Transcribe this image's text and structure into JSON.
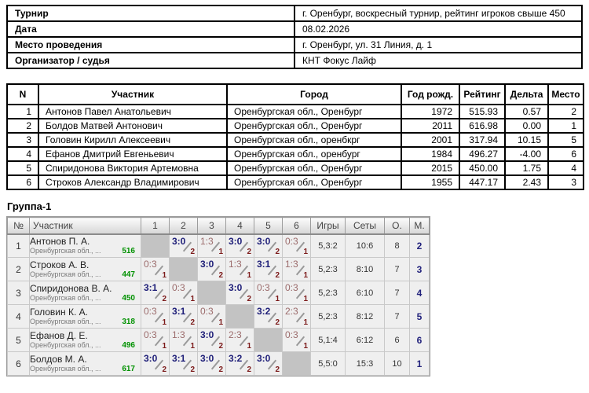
{
  "info_table": {
    "rows": [
      {
        "label": "Турнир",
        "value": "г. Оренбург, воскресный турнир, рейтинг игроков свыше 450"
      },
      {
        "label": "Дата",
        "value": "08.02.2026"
      },
      {
        "label": "Место проведения",
        "value": "г. Оренбург, ул. 31 Линия, д. 1"
      },
      {
        "label": "Организатор / судья",
        "value": "КНТ Фокус Лайф"
      }
    ]
  },
  "participants_table": {
    "headers": [
      "N",
      "Участник",
      "Город",
      "Год рожд.",
      "Рейтинг",
      "Дельта",
      "Место"
    ],
    "rows": [
      {
        "n": "1",
        "name": "Антонов Павел Анатольевич",
        "city": "Оренбургская обл., Оренбург",
        "year": "1972",
        "rating": "515.93",
        "delta": "0.57",
        "place": "2"
      },
      {
        "n": "2",
        "name": "Болдов Матвей Антонович",
        "city": "Оренбургская обл., Оренбург",
        "year": "2011",
        "rating": "616.98",
        "delta": "0.00",
        "place": "1"
      },
      {
        "n": "3",
        "name": "Головин Кирилл Алексеевич",
        "city": "Оренбургская обл., оренбкрг",
        "year": "2001",
        "rating": "317.94",
        "delta": "10.15",
        "place": "5"
      },
      {
        "n": "4",
        "name": "Ефанов Дмитрий Евгеньевич",
        "city": "Оренбургская обл., оренбург",
        "year": "1984",
        "rating": "496.27",
        "delta": "-4.00",
        "place": "6"
      },
      {
        "n": "5",
        "name": "Спиридонова Виктория Артемовна",
        "city": "Оренбургская обл., Оренбург",
        "year": "2015",
        "rating": "450.00",
        "delta": "1.75",
        "place": "4"
      },
      {
        "n": "6",
        "name": "Строков Александр Владимирович",
        "city": "Оренбургская обл., Оренбург",
        "year": "1955",
        "rating": "447.17",
        "delta": "2.43",
        "place": "3"
      }
    ]
  },
  "group": {
    "title": "Группа-1",
    "headers": [
      "№",
      "Участник",
      "1",
      "2",
      "3",
      "4",
      "5",
      "6",
      "Игры",
      "Сеты",
      "О.",
      "М."
    ],
    "rows": [
      {
        "n": "1",
        "name": "Антонов П. А.",
        "region": "Оренбургская обл., ...",
        "rating": "516",
        "cells": [
          {
            "self": true
          },
          {
            "score": "3:0",
            "win": true,
            "pts": "2"
          },
          {
            "score": "1:3",
            "win": false,
            "pts": "1"
          },
          {
            "score": "3:0",
            "win": true,
            "pts": "2"
          },
          {
            "score": "3:0",
            "win": true,
            "pts": "2"
          },
          {
            "score": "0:3",
            "win": false,
            "pts": "1"
          }
        ],
        "games": "5,3:2",
        "sets": "10:6",
        "points": "8",
        "place": "2"
      },
      {
        "n": "2",
        "name": "Строков А. В.",
        "region": "Оренбургская обл., ...",
        "rating": "447",
        "cells": [
          {
            "score": "0:3",
            "win": false,
            "pts": "1"
          },
          {
            "self": true
          },
          {
            "score": "3:0",
            "win": true,
            "pts": "2"
          },
          {
            "score": "1:3",
            "win": false,
            "pts": "1"
          },
          {
            "score": "3:1",
            "win": true,
            "pts": "2"
          },
          {
            "score": "1:3",
            "win": false,
            "pts": "1"
          }
        ],
        "games": "5,2:3",
        "sets": "8:10",
        "points": "7",
        "place": "3"
      },
      {
        "n": "3",
        "name": "Спиридонова В. А.",
        "region": "Оренбургская обл., ...",
        "rating": "450",
        "cells": [
          {
            "score": "3:1",
            "win": true,
            "pts": "2"
          },
          {
            "score": "0:3",
            "win": false,
            "pts": "1"
          },
          {
            "self": true
          },
          {
            "score": "3:0",
            "win": true,
            "pts": "2"
          },
          {
            "score": "0:3",
            "win": false,
            "pts": "1"
          },
          {
            "score": "0:3",
            "win": false,
            "pts": "1"
          }
        ],
        "games": "5,2:3",
        "sets": "6:10",
        "points": "7",
        "place": "4"
      },
      {
        "n": "4",
        "name": "Головин К. А.",
        "region": "Оренбургская обл., ...",
        "rating": "318",
        "cells": [
          {
            "score": "0:3",
            "win": false,
            "pts": "1"
          },
          {
            "score": "3:1",
            "win": true,
            "pts": "2"
          },
          {
            "score": "0:3",
            "win": false,
            "pts": "1"
          },
          {
            "self": true
          },
          {
            "score": "3:2",
            "win": true,
            "pts": "2"
          },
          {
            "score": "2:3",
            "win": false,
            "pts": "1"
          }
        ],
        "games": "5,2:3",
        "sets": "8:12",
        "points": "7",
        "place": "5"
      },
      {
        "n": "5",
        "name": "Ефанов Д. Е.",
        "region": "Оренбургская обл., ...",
        "rating": "496",
        "cells": [
          {
            "score": "0:3",
            "win": false,
            "pts": "1"
          },
          {
            "score": "1:3",
            "win": false,
            "pts": "1"
          },
          {
            "score": "3:0",
            "win": true,
            "pts": "2"
          },
          {
            "score": "2:3",
            "win": false,
            "pts": "1"
          },
          {
            "self": true
          },
          {
            "score": "0:3",
            "win": false,
            "pts": "1"
          }
        ],
        "games": "5,1:4",
        "sets": "6:12",
        "points": "6",
        "place": "6"
      },
      {
        "n": "6",
        "name": "Болдов М. А.",
        "region": "Оренбургская обл., ...",
        "rating": "617",
        "cells": [
          {
            "score": "3:0",
            "win": true,
            "pts": "2"
          },
          {
            "score": "3:1",
            "win": true,
            "pts": "2"
          },
          {
            "score": "3:0",
            "win": true,
            "pts": "2"
          },
          {
            "score": "3:2",
            "win": true,
            "pts": "2"
          },
          {
            "score": "3:0",
            "win": true,
            "pts": "2"
          },
          {
            "self": true
          }
        ],
        "games": "5,5:0",
        "sets": "15:3",
        "points": "10",
        "place": "1"
      }
    ]
  },
  "colors": {
    "win_score": "#1e1e78",
    "loss_score": "#9b6b6b",
    "match_points": "#7c1a1a",
    "rating_green": "#009100",
    "place_navy": "#23237d",
    "self_cell": "#c3c3c3",
    "slash_gray": "#999999"
  }
}
